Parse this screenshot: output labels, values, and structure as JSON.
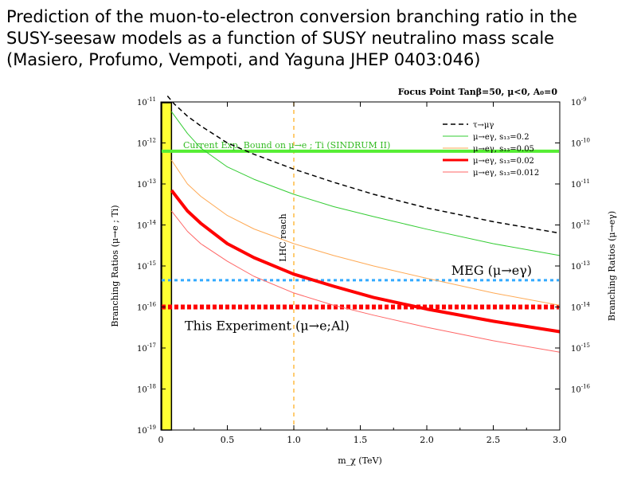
{
  "slide": {
    "title_lines": [
      "Prediction of the muon-to-electron conversion branching ratio in the",
      "SUSY-seesaw models as a function of SUSY neutralino mass scale",
      "(Masiero, Profumo, Vempoti, and Yaguna JHEP 0403:046)"
    ]
  },
  "chart_data": {
    "type": "line",
    "title": "Focus Point  Tanβ=50, μ<0, A₀=0",
    "xlabel": "m_χ (TeV)",
    "ylabel_left": "Branching Ratios (μ→e ; Ti)",
    "ylabel_right": "Branching Ratios (μ→eγ)",
    "xlim": [
      0,
      3.0
    ],
    "ylim_left": [
      1e-19,
      1e-11
    ],
    "ylim_right": [
      1e-17,
      1e-09
    ],
    "log_y": true,
    "x_ticks": [
      "0",
      "0.5",
      "1.0",
      "1.5",
      "2.0",
      "2.5",
      "3.0"
    ],
    "y_ticks_left": [
      {
        "exp": -11,
        "label": "10",
        "sup": "-11"
      },
      {
        "exp": -12,
        "label": "10",
        "sup": "-12"
      },
      {
        "exp": -13,
        "label": "10",
        "sup": "-13"
      },
      {
        "exp": -14,
        "label": "10",
        "sup": "-14"
      },
      {
        "exp": -15,
        "label": "10",
        "sup": "-15"
      },
      {
        "exp": -16,
        "label": "10",
        "sup": "-16"
      },
      {
        "exp": -17,
        "label": "10",
        "sup": "-17"
      },
      {
        "exp": -18,
        "label": "10",
        "sup": "-18"
      },
      {
        "exp": -19,
        "label": "10",
        "sup": "-19"
      }
    ],
    "y_ticks_right": [
      {
        "exp": -9,
        "label": "10",
        "sup": "-9"
      },
      {
        "exp": -10,
        "label": "10",
        "sup": "-10"
      },
      {
        "exp": -11,
        "label": "10",
        "sup": "-11"
      },
      {
        "exp": -12,
        "label": "10",
        "sup": "-12"
      },
      {
        "exp": -13,
        "label": "10",
        "sup": "-13"
      },
      {
        "exp": -14,
        "label": "10",
        "sup": "-14"
      },
      {
        "exp": -15,
        "label": "10",
        "sup": "-15"
      },
      {
        "exp": -16,
        "label": "10",
        "sup": "-16"
      }
    ],
    "excluded_band": {
      "x_from": 0,
      "x_to": 0.08,
      "color": "#ffff33"
    },
    "series": [
      {
        "name": "τ→μγ",
        "color": "#000000",
        "width": 1.5,
        "dash": "6,4",
        "axis": "left",
        "x": [
          0.05,
          0.1,
          0.2,
          0.3,
          0.5,
          0.7,
          1.0,
          1.3,
          1.6,
          2.0,
          2.5,
          3.0
        ],
        "y": [
          1.4e-11,
          9e-12,
          4.5e-12,
          2.6e-12,
          1e-12,
          5.3e-13,
          2.3e-13,
          1.1e-13,
          5.6e-14,
          2.6e-14,
          1.2e-14,
          6.3e-15
        ]
      },
      {
        "name": "μ→eγ, s₁₃=0.2",
        "color": "#33cc33",
        "width": 1,
        "dash": "",
        "axis": "left",
        "x": [
          0.08,
          0.2,
          0.3,
          0.5,
          0.7,
          1.0,
          1.3,
          1.6,
          2.0,
          2.5,
          3.0
        ],
        "y": [
          5.8e-12,
          1.7e-12,
          7.5e-13,
          2.6e-13,
          1.3e-13,
          5.6e-14,
          2.8e-14,
          1.6e-14,
          7.9e-15,
          3.5e-15,
          1.8e-15
        ]
      },
      {
        "name": "μ→eγ, s₁₃=0.05",
        "color": "#ffaa55",
        "width": 1,
        "dash": "",
        "axis": "left",
        "x": [
          0.08,
          0.2,
          0.3,
          0.5,
          0.7,
          1.0,
          1.3,
          1.6,
          2.0,
          2.5,
          3.0
        ],
        "y": [
          3.8e-13,
          1e-13,
          5e-14,
          1.7e-14,
          8e-15,
          3.5e-15,
          1.8e-15,
          1e-15,
          5e-16,
          2.2e-16,
          1.1e-16
        ]
      },
      {
        "name": "μ→eγ, s₁₃=0.02",
        "color": "#ff0000",
        "width": 4,
        "dash": "",
        "axis": "left",
        "x": [
          0.08,
          0.2,
          0.3,
          0.5,
          0.7,
          1.0,
          1.3,
          1.6,
          2.0,
          2.5,
          3.0
        ],
        "y": [
          7e-14,
          2.2e-14,
          1.1e-14,
          3.5e-15,
          1.6e-15,
          6.3e-16,
          3.2e-16,
          1.7e-16,
          8.9e-17,
          4.5e-17,
          2.5e-17
        ]
      },
      {
        "name": "μ→eγ, s₁₃=0.012",
        "color": "#ff6666",
        "width": 1,
        "dash": "",
        "axis": "left",
        "x": [
          0.08,
          0.2,
          0.3,
          0.5,
          0.7,
          1.0,
          1.3,
          1.6,
          2.0,
          2.5,
          3.0
        ],
        "y": [
          2.2e-14,
          7e-15,
          3.5e-15,
          1.3e-15,
          5.6e-16,
          2.2e-16,
          1.1e-16,
          6.3e-17,
          3.2e-17,
          1.5e-17,
          7.9e-18
        ]
      }
    ],
    "hlines": [
      {
        "label": "Current Exp. Bound on μ→e ; Ti (SINDRUM II)",
        "y": 6.3e-13,
        "color": "#55ee33",
        "width": 4,
        "dash": ""
      },
      {
        "label": "MEG (μ→eγ)",
        "y": 4.5e-16,
        "color": "#33aaff",
        "width": 3,
        "dash": "4,4"
      },
      {
        "label": "This Experiment (μ→e;Al)",
        "y": 1e-16,
        "color": "#ff0000",
        "width": 6,
        "dash": "5,3"
      }
    ],
    "vline": {
      "label": "LHC reach",
      "x": 1.0,
      "color": "#ffbb44",
      "dash": "5,5"
    }
  }
}
